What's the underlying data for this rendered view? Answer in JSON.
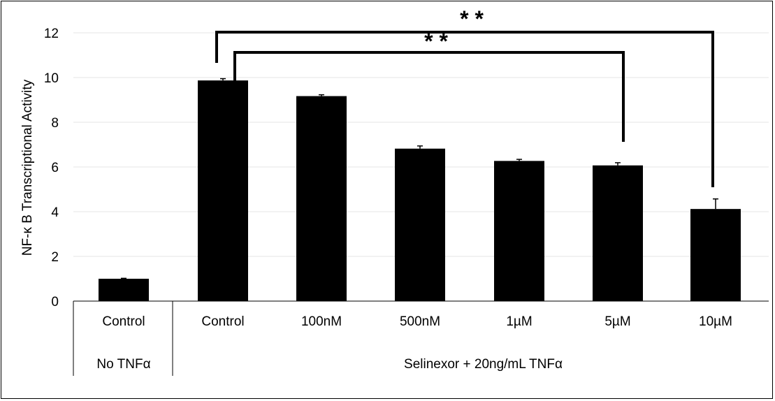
{
  "chart_data": {
    "type": "bar",
    "ylabel": "NF-κ B Transcriptional Activity",
    "ylim": [
      0,
      12
    ],
    "yticks": [
      0,
      2,
      4,
      6,
      8,
      10,
      12
    ],
    "grid": true,
    "legend": "none",
    "categories": [
      "Control",
      "Control",
      "100nM",
      "500nM",
      "1µM",
      "5µM",
      "10µM"
    ],
    "values": [
      1.0,
      9.87,
      9.17,
      6.82,
      6.27,
      6.07,
      4.12
    ],
    "errors": [
      0.02,
      0.08,
      0.06,
      0.12,
      0.07,
      0.12,
      0.45
    ],
    "groups": [
      {
        "label": "No TNFα",
        "start": 0,
        "end": 0
      },
      {
        "label": "Selinexor + 20ng/mL TNFα",
        "start": 1,
        "end": 6
      }
    ],
    "significance": [
      {
        "from": 1,
        "to": 6,
        "label": "* *"
      },
      {
        "from": 1,
        "to": 5,
        "label": "* *"
      }
    ],
    "bar_color": "#000000",
    "grid_color": "#e6e6e6"
  }
}
